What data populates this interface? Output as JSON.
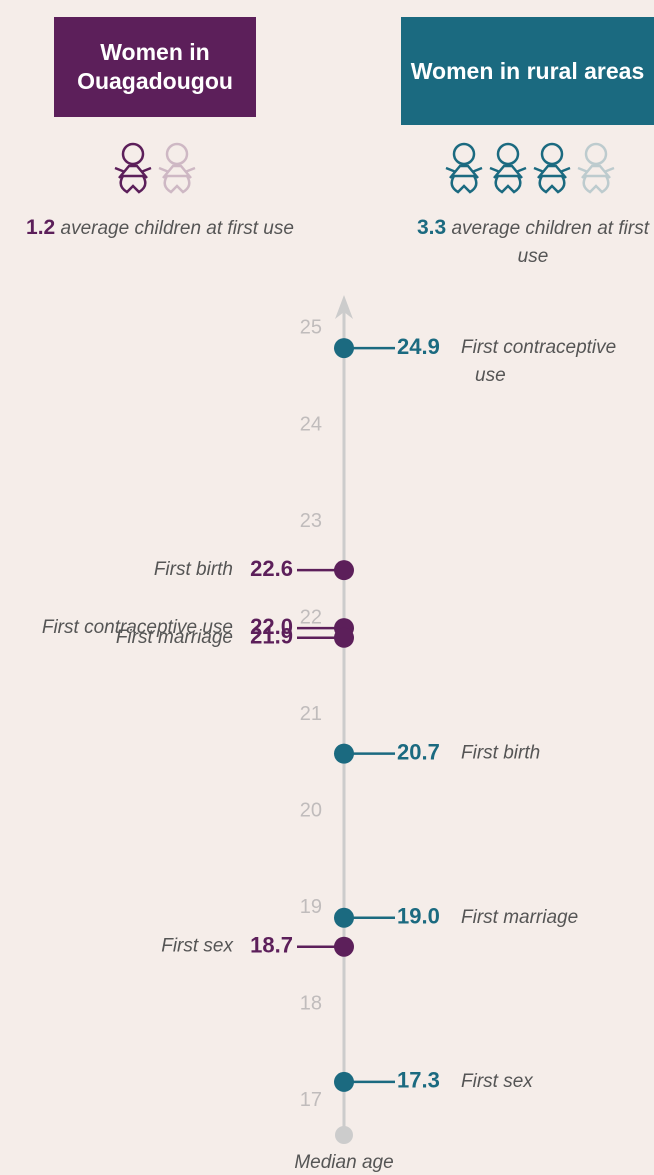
{
  "chart_data": {
    "type": "timeline",
    "axis_label": "Median age",
    "ylim": [
      16.75,
      25.45
    ],
    "yticks": [
      17,
      18,
      19,
      20,
      21,
      22,
      23,
      24,
      25
    ],
    "axis_color": "#cccccc",
    "series": [
      {
        "name": "Women in Ouagadougou",
        "color": "#5c1f5a",
        "children": 1.2,
        "children_text": "average children at first use",
        "events": [
          "First birth",
          "First contraceptive use",
          "First marriage",
          "First sex"
        ],
        "values": [
          22.6,
          22.0,
          21.9,
          18.7
        ],
        "value_labels": [
          "22.6",
          "22.0",
          "21.9",
          "18.7"
        ]
      },
      {
        "name": "Women in rural areas",
        "color": "#1b6a80",
        "children": 3.3,
        "children_text": "average children at first use",
        "events": [
          "First contraceptive use",
          "First birth",
          "First marriage",
          "First sex"
        ],
        "values": [
          24.9,
          20.7,
          19.0,
          17.3
        ],
        "value_labels": [
          "24.9",
          "20.7",
          "19.0",
          "17.3"
        ]
      }
    ]
  }
}
